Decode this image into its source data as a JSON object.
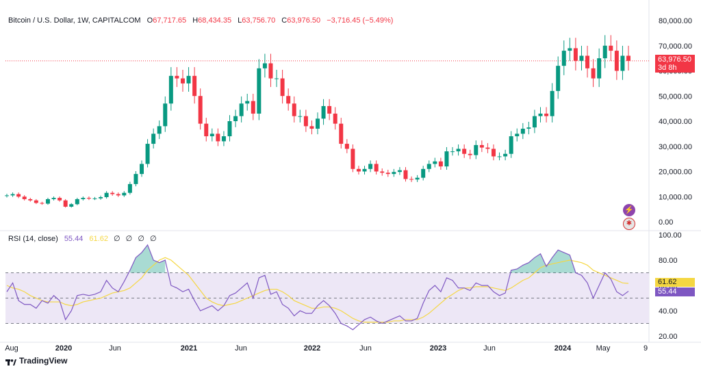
{
  "header": {
    "symbol": "Bitcoin / U.S. Dollar, 1W, CAPITALCOM",
    "o_label": "O",
    "o_value": "67,717.65",
    "h_label": "H",
    "h_value": "68,434.35",
    "l_label": "L",
    "l_value": "63,756.70",
    "c_label": "C",
    "c_value": "63,976.50",
    "change": "−3,716.45 (−5.49%)"
  },
  "rsi_header": {
    "label": "RSI (14, close)",
    "rsi_value": "55.44",
    "ma_value": "61.62",
    "nulls": [
      "∅",
      "∅",
      "∅",
      "∅"
    ]
  },
  "price_badge": {
    "price": "63,976.50",
    "countdown": "3d 8h"
  },
  "rsi_badges": {
    "ma": "61.62",
    "rsi": "55.44"
  },
  "logo": "TradingView",
  "icons": [
    "lightning-icon",
    "us-flag-icon"
  ],
  "colors": {
    "up": "#089981",
    "down": "#f23645",
    "rsi": "#7e57c2",
    "rsi_ma": "#f5d742",
    "band": "#ede7f6"
  },
  "chart_data": [
    {
      "type": "candlestick",
      "title": "Bitcoin / U.S. Dollar, 1W, CAPITALCOM",
      "y_ticks": [
        "80,000.00",
        "70,000.00",
        "60,000.00",
        "50,000.00",
        "40,000.00",
        "30,000.00",
        "20,000.00",
        "10,000.00",
        "0.00"
      ],
      "ylim": [
        0,
        80000
      ],
      "x_ticks": [
        "Aug",
        "2020",
        "Jun",
        "2021",
        "Jun",
        "2022",
        "Jun",
        "2023",
        "Jun",
        "2024",
        "May",
        "9"
      ],
      "current_price": 63976.5,
      "weekly_closes": [
        10500,
        11000,
        10000,
        9000,
        8500,
        7500,
        7200,
        9000,
        9500,
        8500,
        6000,
        7000,
        9000,
        9500,
        9200,
        9300,
        9800,
        11500,
        11000,
        10500,
        11500,
        15000,
        19000,
        23000,
        31000,
        35000,
        38000,
        47000,
        58000,
        57000,
        55000,
        58000,
        50000,
        39000,
        34000,
        35000,
        32000,
        34000,
        40000,
        42000,
        47000,
        48000,
        43000,
        61000,
        63000,
        57000,
        57000,
        50000,
        47000,
        42000,
        42000,
        38000,
        37000,
        41000,
        46000,
        43000,
        39000,
        31000,
        29000,
        21000,
        20000,
        21000,
        23000,
        20000,
        19500,
        19000,
        19800,
        20500,
        17000,
        16800,
        17500,
        21000,
        23000,
        24000,
        22000,
        28000,
        28000,
        29000,
        27000,
        26500,
        30500,
        29500,
        29000,
        26000,
        26000,
        27000,
        34000,
        35000,
        37000,
        37500,
        42000,
        43000,
        42000,
        52000,
        62000,
        68000,
        69000,
        64000,
        66000,
        61000,
        57000,
        65000,
        70000,
        68000,
        60000,
        66000,
        63976.5
      ]
    },
    {
      "type": "line",
      "title": "RSI (14, close)",
      "y_ticks": [
        "100.00",
        "80.00",
        "60.00",
        "40.00",
        "20.00"
      ],
      "ylim": [
        20,
        100
      ],
      "bands": [
        70,
        50,
        30
      ],
      "series": [
        {
          "name": "RSI",
          "values": [
            55,
            62,
            48,
            45,
            45,
            42,
            48,
            46,
            52,
            48,
            33,
            40,
            52,
            53,
            52,
            53,
            55,
            64,
            58,
            55,
            63,
            72,
            82,
            86,
            92,
            80,
            78,
            80,
            60,
            58,
            55,
            57,
            48,
            40,
            42,
            44,
            40,
            44,
            52,
            54,
            58,
            62,
            50,
            66,
            68,
            53,
            55,
            45,
            42,
            36,
            40,
            38,
            38,
            44,
            48,
            44,
            38,
            30,
            28,
            25,
            29,
            33,
            35,
            32,
            30,
            32,
            34,
            36,
            32,
            32,
            34,
            46,
            56,
            60,
            55,
            66,
            64,
            58,
            58,
            56,
            62,
            60,
            60,
            55,
            52,
            54,
            72,
            73,
            76,
            78,
            82,
            85,
            75,
            82,
            88,
            86,
            84,
            70,
            68,
            62,
            50,
            60,
            70,
            65,
            55,
            52,
            55.44
          ]
        },
        {
          "name": "RSI MA",
          "values": [
            60,
            58,
            57,
            55,
            52,
            50,
            48,
            47,
            47,
            47,
            45,
            44,
            45,
            47,
            48,
            49,
            50,
            52,
            54,
            55,
            56,
            58,
            62,
            66,
            72,
            76,
            80,
            82,
            80,
            76,
            72,
            68,
            62,
            56,
            50,
            47,
            45,
            44,
            45,
            46,
            48,
            50,
            52,
            54,
            56,
            57,
            57,
            55,
            52,
            48,
            46,
            44,
            42,
            42,
            43,
            43,
            42,
            40,
            37,
            34,
            32,
            31,
            31,
            31,
            31,
            31,
            32,
            32,
            33,
            33,
            33,
            35,
            38,
            42,
            46,
            50,
            53,
            56,
            58,
            58,
            59,
            59,
            59,
            58,
            57,
            56,
            58,
            61,
            64,
            66,
            70,
            74,
            76,
            77,
            78,
            79,
            80,
            79,
            78,
            76,
            72,
            70,
            68,
            66,
            64,
            62,
            61.62
          ]
        }
      ]
    }
  ]
}
